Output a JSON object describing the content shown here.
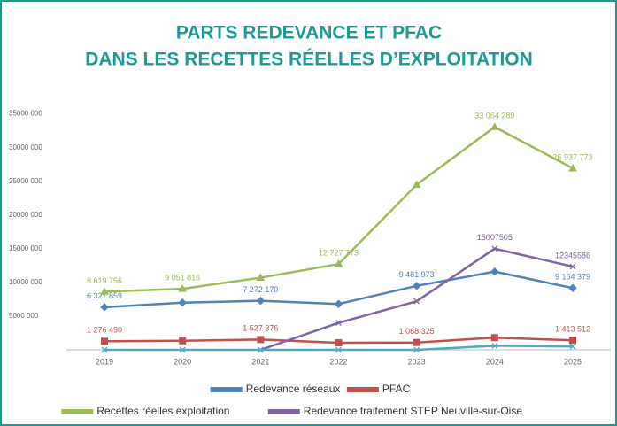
{
  "chart_data": {
    "type": "line",
    "title": [
      "PARTS REDEVANCE ET PFAC",
      "DANS LES RECETTES RÉELLES D’EXPLOITATION"
    ],
    "categories": [
      "2019",
      "2020",
      "2021",
      "2022",
      "2023",
      "2024",
      "2025"
    ],
    "ylim": [
      0,
      36000000
    ],
    "yticks": [
      {
        "value": 5000000,
        "label": "5000 000"
      },
      {
        "value": 10000000,
        "label": "10000 000"
      },
      {
        "value": 15000000,
        "label": "15000 000"
      },
      {
        "value": 20000000,
        "label": "20000 000"
      },
      {
        "value": 25000000,
        "label": "25000 000"
      },
      {
        "value": 30000000,
        "label": "30000 000"
      },
      {
        "value": 35000000,
        "label": "35000 000"
      }
    ],
    "grid": false,
    "series": [
      {
        "name": "Redevance réseaux",
        "color": "#4f81bd",
        "marker": "diamond",
        "values": [
          6327859,
          7000000,
          7272170,
          6800000,
          9481973,
          11600000,
          9164379
        ],
        "value_labels": [
          "6 327 859",
          null,
          "7 272 170",
          null,
          "9 481 973",
          null,
          "9 164 379"
        ]
      },
      {
        "name": "PFAC",
        "color": "#c0504d",
        "marker": "square",
        "values": [
          1276490,
          1350000,
          1527376,
          1050000,
          1088325,
          1800000,
          1413512
        ],
        "value_labels": [
          "1 276 490",
          null,
          "1 527 376",
          null,
          "1 088 325",
          null,
          "1 413 512"
        ]
      },
      {
        "name": "Recettes réelles exploitation",
        "color": "#9bbb59",
        "marker": "triangle",
        "values": [
          8619756,
          9051816,
          10700000,
          12727773,
          24500000,
          33064289,
          26937773
        ],
        "value_labels": [
          "8 619 756",
          "9 051 816",
          null,
          "12 727 773",
          null,
          "33 064 289",
          "26 937 773"
        ]
      },
      {
        "name": "Redevance traitement STEP Neuville-sur-Oise",
        "color": "#8064a2",
        "marker": "x",
        "values": [
          null,
          null,
          0,
          4000000,
          7200000,
          15007505,
          12345586
        ],
        "value_labels": [
          null,
          null,
          null,
          null,
          null,
          "15007505",
          "12345586"
        ]
      },
      {
        "color": "#4bacc6",
        "marker": "x",
        "values": [
          0,
          0,
          0,
          0,
          0,
          600000,
          500000
        ]
      }
    ]
  }
}
